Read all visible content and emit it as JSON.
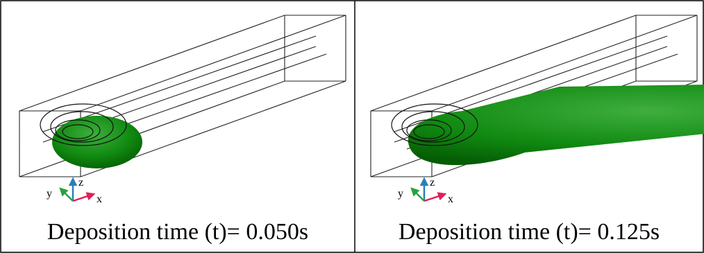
{
  "panels": [
    {
      "caption": "Deposition time (t)= 0.050s",
      "axes": {
        "x": "x",
        "y": "y",
        "z": "z"
      }
    },
    {
      "caption": "Deposition time (t)= 0.125s",
      "axes": {
        "x": "x",
        "y": "y",
        "z": "z"
      }
    }
  ]
}
